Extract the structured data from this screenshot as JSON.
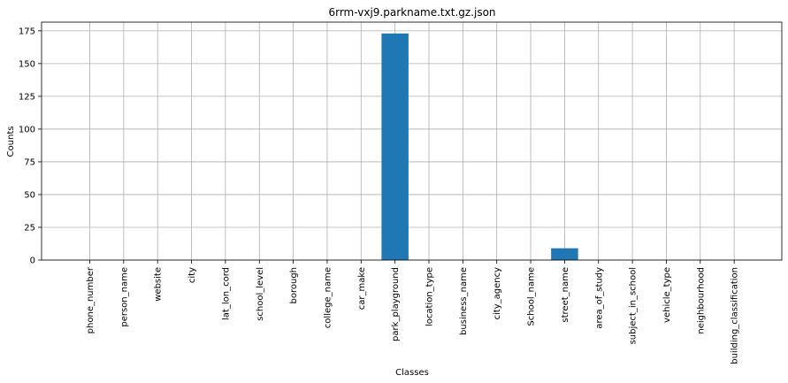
{
  "chart_data": {
    "type": "bar",
    "title": "6rrm-vxj9.parkname.txt.gz.json",
    "xlabel": "Classes",
    "ylabel": "Counts",
    "categories": [
      "phone_number",
      "person_name",
      "website",
      "city",
      "lat_lon_cord",
      "school_level",
      "borough",
      "college_name",
      "car_make",
      "park_playground",
      "location_type",
      "business_name",
      "city_agency",
      "School_name",
      "street_name",
      "area_of_study",
      "subject_in_school",
      "vehicle_type",
      "neighbourhood",
      "building_classification"
    ],
    "values": [
      0,
      0,
      0,
      0,
      0,
      0,
      0,
      0,
      0,
      173,
      0,
      0,
      0,
      0,
      9,
      0,
      0,
      0,
      0,
      0
    ],
    "ylim": [
      0,
      181.65
    ],
    "yticks": [
      0,
      25,
      50,
      75,
      100,
      125,
      150,
      175
    ],
    "grid": true,
    "bar_color": "#1f77b4",
    "grid_color": "#b0b0b0"
  }
}
